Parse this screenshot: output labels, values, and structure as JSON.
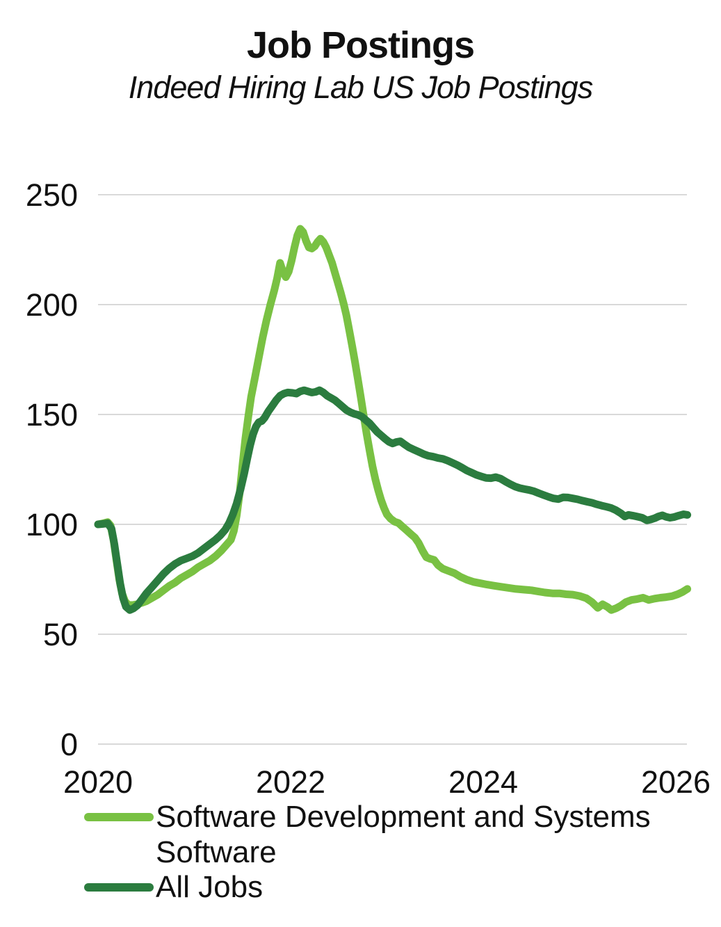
{
  "header": {
    "title": "Job Postings",
    "subtitle": "Indeed Hiring Lab US Job Postings"
  },
  "chart_data": {
    "type": "line",
    "title": "Job Postings",
    "subtitle": "Indeed Hiring Lab US Job Postings",
    "xlabel": "",
    "ylabel": "",
    "xlim": [
      2020,
      2026.15
    ],
    "ylim": [
      0,
      265
    ],
    "xticks": [
      2020,
      2022,
      2024,
      2026
    ],
    "yticks": [
      0,
      50,
      100,
      150,
      200,
      250
    ],
    "grid": "horizontal",
    "grid_color": "#d9d9d9",
    "legend_position": "bottom-left",
    "series": [
      {
        "name": "Software Development and Systems Software",
        "color": "#79c143",
        "stroke_width": 11,
        "points": [
          [
            2020.0,
            100
          ],
          [
            2020.05,
            100.4
          ],
          [
            2020.1,
            101
          ],
          [
            2020.13,
            99.5
          ],
          [
            2020.16,
            93
          ],
          [
            2020.19,
            84
          ],
          [
            2020.22,
            75
          ],
          [
            2020.25,
            68.5
          ],
          [
            2020.28,
            65
          ],
          [
            2020.31,
            63.5
          ],
          [
            2020.35,
            63.2
          ],
          [
            2020.4,
            63.6
          ],
          [
            2020.45,
            64.2
          ],
          [
            2020.5,
            65
          ],
          [
            2020.56,
            66.5
          ],
          [
            2020.62,
            68
          ],
          [
            2020.68,
            70
          ],
          [
            2020.74,
            72
          ],
          [
            2020.8,
            73.5
          ],
          [
            2020.86,
            75.5
          ],
          [
            2020.92,
            77
          ],
          [
            2020.98,
            78.5
          ],
          [
            2021.04,
            80.5
          ],
          [
            2021.1,
            82
          ],
          [
            2021.16,
            83.5
          ],
          [
            2021.22,
            85.5
          ],
          [
            2021.28,
            88
          ],
          [
            2021.33,
            90.5
          ],
          [
            2021.38,
            93
          ],
          [
            2021.41,
            97
          ],
          [
            2021.44,
            104
          ],
          [
            2021.47,
            114
          ],
          [
            2021.5,
            127
          ],
          [
            2021.53,
            139
          ],
          [
            2021.56,
            149
          ],
          [
            2021.59,
            158
          ],
          [
            2021.63,
            167
          ],
          [
            2021.67,
            176
          ],
          [
            2021.71,
            185
          ],
          [
            2021.75,
            193
          ],
          [
            2021.79,
            200
          ],
          [
            2021.83,
            206.5
          ],
          [
            2021.86,
            212
          ],
          [
            2021.89,
            219
          ],
          [
            2021.92,
            215
          ],
          [
            2021.95,
            212.5
          ],
          [
            2021.98,
            215
          ],
          [
            2022.01,
            220
          ],
          [
            2022.04,
            226
          ],
          [
            2022.07,
            231.5
          ],
          [
            2022.1,
            234.5
          ],
          [
            2022.13,
            233
          ],
          [
            2022.16,
            229
          ],
          [
            2022.19,
            226
          ],
          [
            2022.22,
            225.5
          ],
          [
            2022.25,
            226.5
          ],
          [
            2022.28,
            228.5
          ],
          [
            2022.31,
            230
          ],
          [
            2022.34,
            228.5
          ],
          [
            2022.37,
            226
          ],
          [
            2022.4,
            222.5
          ],
          [
            2022.43,
            219
          ],
          [
            2022.46,
            214.5
          ],
          [
            2022.49,
            210
          ],
          [
            2022.52,
            205.5
          ],
          [
            2022.55,
            200.5
          ],
          [
            2022.58,
            195
          ],
          [
            2022.61,
            188
          ],
          [
            2022.64,
            181
          ],
          [
            2022.67,
            173.5
          ],
          [
            2022.7,
            165.5
          ],
          [
            2022.73,
            157.5
          ],
          [
            2022.76,
            149
          ],
          [
            2022.79,
            141
          ],
          [
            2022.82,
            133.5
          ],
          [
            2022.85,
            126.5
          ],
          [
            2022.88,
            120.5
          ],
          [
            2022.91,
            115.5
          ],
          [
            2022.94,
            111
          ],
          [
            2022.97,
            107.5
          ],
          [
            2023.0,
            104.5
          ],
          [
            2023.04,
            102.5
          ],
          [
            2023.08,
            101.2
          ],
          [
            2023.12,
            100.6
          ],
          [
            2023.16,
            99
          ],
          [
            2023.2,
            97.5
          ],
          [
            2023.25,
            95.5
          ],
          [
            2023.29,
            94
          ],
          [
            2023.33,
            91.5
          ],
          [
            2023.37,
            88
          ],
          [
            2023.41,
            85
          ],
          [
            2023.45,
            84.3
          ],
          [
            2023.49,
            83.8
          ],
          [
            2023.53,
            81.5
          ],
          [
            2023.58,
            79.8
          ],
          [
            2023.64,
            78.8
          ],
          [
            2023.7,
            77.8
          ],
          [
            2023.76,
            76.2
          ],
          [
            2023.83,
            74.8
          ],
          [
            2023.9,
            73.8
          ],
          [
            2023.97,
            73.2
          ],
          [
            2024.04,
            72.6
          ],
          [
            2024.11,
            72.1
          ],
          [
            2024.18,
            71.6
          ],
          [
            2024.26,
            71.1
          ],
          [
            2024.34,
            70.6
          ],
          [
            2024.42,
            70.3
          ],
          [
            2024.5,
            70
          ],
          [
            2024.57,
            69.5
          ],
          [
            2024.64,
            69
          ],
          [
            2024.72,
            68.6
          ],
          [
            2024.79,
            68.6
          ],
          [
            2024.86,
            68.2
          ],
          [
            2024.93,
            68
          ],
          [
            2025.0,
            67.4
          ],
          [
            2025.07,
            66.4
          ],
          [
            2025.13,
            64.6
          ],
          [
            2025.19,
            62
          ],
          [
            2025.24,
            63.6
          ],
          [
            2025.29,
            62.4
          ],
          [
            2025.33,
            61
          ],
          [
            2025.38,
            61.8
          ],
          [
            2025.43,
            63
          ],
          [
            2025.48,
            64.6
          ],
          [
            2025.54,
            65.6
          ],
          [
            2025.6,
            66
          ],
          [
            2025.66,
            66.6
          ],
          [
            2025.72,
            65.6
          ],
          [
            2025.78,
            66.2
          ],
          [
            2025.84,
            66.6
          ],
          [
            2025.9,
            66.9
          ],
          [
            2025.96,
            67.3
          ],
          [
            2026.02,
            68.2
          ],
          [
            2026.07,
            69.2
          ],
          [
            2026.12,
            70.6
          ]
        ]
      },
      {
        "name": "All Jobs",
        "color": "#2b7c3f",
        "stroke_width": 11,
        "points": [
          [
            2020.0,
            100
          ],
          [
            2020.05,
            100.2
          ],
          [
            2020.1,
            100.5
          ],
          [
            2020.14,
            98
          ],
          [
            2020.17,
            91
          ],
          [
            2020.2,
            82
          ],
          [
            2020.23,
            73
          ],
          [
            2020.26,
            66.5
          ],
          [
            2020.29,
            62.5
          ],
          [
            2020.33,
            61
          ],
          [
            2020.37,
            61.8
          ],
          [
            2020.41,
            63.2
          ],
          [
            2020.45,
            65.5
          ],
          [
            2020.5,
            68.5
          ],
          [
            2020.56,
            71.5
          ],
          [
            2020.62,
            74.5
          ],
          [
            2020.68,
            77.5
          ],
          [
            2020.74,
            80
          ],
          [
            2020.8,
            82
          ],
          [
            2020.86,
            83.5
          ],
          [
            2020.92,
            84.5
          ],
          [
            2020.98,
            85.5
          ],
          [
            2021.04,
            87
          ],
          [
            2021.1,
            89
          ],
          [
            2021.16,
            91
          ],
          [
            2021.22,
            93
          ],
          [
            2021.27,
            95
          ],
          [
            2021.32,
            97.5
          ],
          [
            2021.36,
            100.5
          ],
          [
            2021.4,
            104.5
          ],
          [
            2021.44,
            109.5
          ],
          [
            2021.48,
            116
          ],
          [
            2021.52,
            123.5
          ],
          [
            2021.55,
            130
          ],
          [
            2021.58,
            136
          ],
          [
            2021.61,
            141
          ],
          [
            2021.64,
            144.5
          ],
          [
            2021.67,
            146.5
          ],
          [
            2021.7,
            147
          ],
          [
            2021.73,
            148.5
          ],
          [
            2021.77,
            151.5
          ],
          [
            2021.81,
            154
          ],
          [
            2021.85,
            156.5
          ],
          [
            2021.89,
            158.5
          ],
          [
            2021.93,
            159.5
          ],
          [
            2021.97,
            160
          ],
          [
            2022.02,
            159.8
          ],
          [
            2022.06,
            159.5
          ],
          [
            2022.1,
            160.5
          ],
          [
            2022.14,
            161
          ],
          [
            2022.18,
            160.5
          ],
          [
            2022.22,
            160
          ],
          [
            2022.26,
            160.3
          ],
          [
            2022.3,
            161
          ],
          [
            2022.34,
            160
          ],
          [
            2022.38,
            158.5
          ],
          [
            2022.42,
            157.5
          ],
          [
            2022.46,
            156.5
          ],
          [
            2022.5,
            155
          ],
          [
            2022.54,
            153.5
          ],
          [
            2022.58,
            152
          ],
          [
            2022.62,
            151
          ],
          [
            2022.66,
            150.3
          ],
          [
            2022.7,
            149.8
          ],
          [
            2022.74,
            149
          ],
          [
            2022.78,
            147.5
          ],
          [
            2022.82,
            146
          ],
          [
            2022.86,
            144
          ],
          [
            2022.9,
            142
          ],
          [
            2022.94,
            140.5
          ],
          [
            2022.98,
            139
          ],
          [
            2023.02,
            137.6
          ],
          [
            2023.06,
            136.8
          ],
          [
            2023.1,
            137.5
          ],
          [
            2023.14,
            137.8
          ],
          [
            2023.18,
            136.5
          ],
          [
            2023.23,
            135
          ],
          [
            2023.28,
            134
          ],
          [
            2023.33,
            133
          ],
          [
            2023.38,
            132
          ],
          [
            2023.43,
            131.2
          ],
          [
            2023.48,
            130.8
          ],
          [
            2023.53,
            130.2
          ],
          [
            2023.58,
            129.8
          ],
          [
            2023.63,
            129
          ],
          [
            2023.68,
            128
          ],
          [
            2023.73,
            127
          ],
          [
            2023.78,
            125.8
          ],
          [
            2023.83,
            124.5
          ],
          [
            2023.88,
            123.5
          ],
          [
            2023.93,
            122.5
          ],
          [
            2023.98,
            121.8
          ],
          [
            2024.03,
            121.1
          ],
          [
            2024.08,
            121
          ],
          [
            2024.13,
            121.5
          ],
          [
            2024.18,
            120.8
          ],
          [
            2024.23,
            119.5
          ],
          [
            2024.28,
            118.3
          ],
          [
            2024.33,
            117.2
          ],
          [
            2024.38,
            116.5
          ],
          [
            2024.43,
            116
          ],
          [
            2024.48,
            115.6
          ],
          [
            2024.53,
            115
          ],
          [
            2024.58,
            114.1
          ],
          [
            2024.63,
            113.3
          ],
          [
            2024.68,
            112.5
          ],
          [
            2024.73,
            111.8
          ],
          [
            2024.78,
            111.5
          ],
          [
            2024.83,
            112.3
          ],
          [
            2024.88,
            112.2
          ],
          [
            2024.93,
            111.8
          ],
          [
            2024.98,
            111.4
          ],
          [
            2025.03,
            110.8
          ],
          [
            2025.08,
            110.3
          ],
          [
            2025.13,
            109.8
          ],
          [
            2025.18,
            109.1
          ],
          [
            2025.23,
            108.5
          ],
          [
            2025.28,
            108
          ],
          [
            2025.33,
            107.4
          ],
          [
            2025.38,
            106.4
          ],
          [
            2025.43,
            105
          ],
          [
            2025.47,
            103.6
          ],
          [
            2025.51,
            104.3
          ],
          [
            2025.55,
            104
          ],
          [
            2025.6,
            103.5
          ],
          [
            2025.65,
            103
          ],
          [
            2025.7,
            101.8
          ],
          [
            2025.74,
            102.2
          ],
          [
            2025.78,
            102.8
          ],
          [
            2025.82,
            103.6
          ],
          [
            2025.86,
            104.1
          ],
          [
            2025.9,
            103.4
          ],
          [
            2025.94,
            103
          ],
          [
            2025.98,
            103.3
          ],
          [
            2026.03,
            104
          ],
          [
            2026.08,
            104.6
          ],
          [
            2026.12,
            104.3
          ]
        ]
      }
    ]
  },
  "legend": {
    "items": [
      {
        "label": "Software Development and Systems Software"
      },
      {
        "label": "All Jobs"
      }
    ]
  }
}
